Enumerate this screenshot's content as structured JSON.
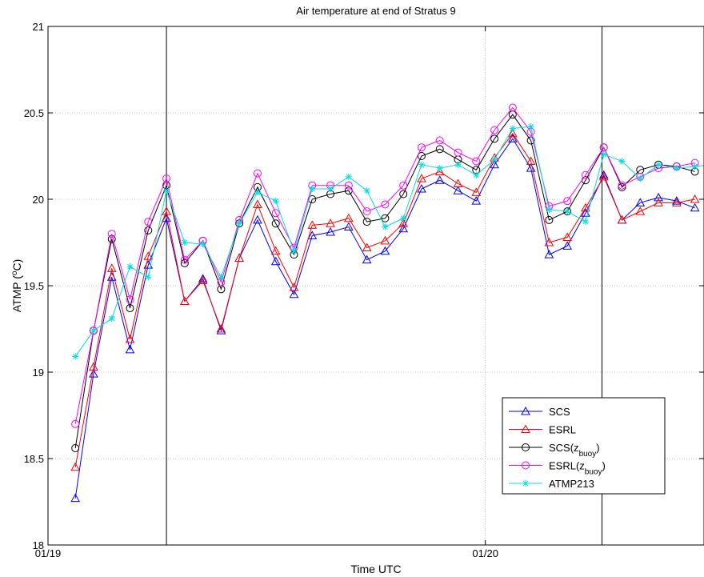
{
  "chart_data": {
    "type": "line",
    "title": "Air temperature at end of Stratus 9",
    "xlabel": "Time UTC",
    "ylabel": "ATMP (°C)",
    "ylabel_parts": {
      "main": "ATMP (",
      "sup": "o",
      "unit": "C)"
    },
    "xlim": [
      0,
      36
    ],
    "ylim": [
      18,
      21
    ],
    "yticks": [
      18,
      18.5,
      19,
      19.5,
      20,
      20.5,
      21
    ],
    "xticks": [
      {
        "x": 0,
        "label": "01/19"
      },
      {
        "x": 24,
        "label": "01/20"
      }
    ],
    "vlines": [
      6.5,
      30.4
    ],
    "grid": true,
    "legend_position": "bottom-right",
    "series": [
      {
        "name": "SCS",
        "label_main": "SCS",
        "label_sub": "",
        "color": "#0000ff",
        "marker": "triangle",
        "x": [
          1.5,
          2.5,
          3.5,
          4.5,
          5.5,
          6.5,
          7.5,
          8.5,
          9.5,
          10.5,
          11.5,
          12.5,
          13.5,
          14.5,
          15.5,
          16.5,
          17.5,
          18.5,
          19.5,
          20.5,
          21.5,
          22.5,
          23.5,
          24.5,
          25.5,
          26.5,
          27.5,
          28.5,
          29.5,
          30.5,
          31.5,
          32.5,
          33.5,
          34.5,
          35.5
        ],
        "values": [
          18.27,
          18.99,
          19.55,
          19.13,
          19.62,
          19.89,
          19.41,
          19.54,
          19.24,
          19.66,
          19.88,
          19.64,
          19.45,
          19.79,
          19.81,
          19.84,
          19.65,
          19.7,
          19.83,
          20.06,
          20.11,
          20.05,
          19.99,
          20.2,
          20.35,
          20.18,
          19.68,
          19.73,
          19.92,
          20.14,
          19.88,
          19.98,
          20.01,
          19.99,
          19.95
        ]
      },
      {
        "name": "ESRL",
        "label_main": "ESRL",
        "label_sub": "",
        "color": "#ff0000",
        "marker": "triangle",
        "x": [
          1.5,
          2.5,
          3.5,
          4.5,
          5.5,
          6.5,
          7.5,
          8.5,
          9.5,
          10.5,
          11.5,
          12.5,
          13.5,
          14.5,
          15.5,
          16.5,
          17.5,
          18.5,
          19.5,
          20.5,
          21.5,
          22.5,
          23.5,
          24.5,
          25.5,
          26.5,
          27.5,
          28.5,
          29.5,
          30.5,
          31.5,
          32.5,
          33.5,
          34.5,
          35.5
        ],
        "values": [
          18.45,
          19.03,
          19.6,
          19.19,
          19.67,
          19.93,
          19.41,
          19.53,
          19.25,
          19.66,
          19.97,
          19.7,
          19.49,
          19.85,
          19.86,
          19.89,
          19.72,
          19.76,
          19.86,
          20.12,
          20.16,
          20.09,
          20.04,
          20.24,
          20.38,
          20.22,
          19.75,
          19.78,
          19.95,
          20.13,
          19.88,
          19.93,
          19.98,
          19.98,
          20.0
        ]
      },
      {
        "name": "SCS(zbuoy)",
        "label_main": "SCS(z",
        "label_sub": "buoy",
        "color": "#000000",
        "marker": "circle",
        "x": [
          1.5,
          2.5,
          3.5,
          4.5,
          5.5,
          6.5,
          7.5,
          8.5,
          9.5,
          10.5,
          11.5,
          12.5,
          13.5,
          14.5,
          15.5,
          16.5,
          17.5,
          18.5,
          19.5,
          20.5,
          21.5,
          22.5,
          23.5,
          24.5,
          25.5,
          26.5,
          27.5,
          28.5,
          29.5,
          30.5,
          31.5,
          32.5,
          33.5,
          34.5,
          35.5
        ],
        "values": [
          18.56,
          19.24,
          19.77,
          19.37,
          19.82,
          20.08,
          19.63,
          19.76,
          19.48,
          19.86,
          20.07,
          19.86,
          19.68,
          20.0,
          20.03,
          20.05,
          19.87,
          19.89,
          20.03,
          20.25,
          20.29,
          20.23,
          20.17,
          20.35,
          20.49,
          20.34,
          19.88,
          19.93,
          20.11,
          20.3,
          20.07,
          20.17,
          20.2,
          20.19,
          20.16
        ]
      },
      {
        "name": "ESRL(zbuoy)",
        "label_main": "ESRL(z",
        "label_sub": "buoy",
        "color": "#ff00ff",
        "marker": "circle",
        "x": [
          1.5,
          2.5,
          3.5,
          4.5,
          5.5,
          6.5,
          7.5,
          8.5,
          9.5,
          10.5,
          11.5,
          12.5,
          13.5,
          14.5,
          15.5,
          16.5,
          17.5,
          18.5,
          19.5,
          20.5,
          21.5,
          22.5,
          23.5,
          24.5,
          25.5,
          26.5,
          27.5,
          28.5,
          29.5,
          30.5,
          31.5,
          32.5,
          33.5,
          34.5,
          35.5
        ],
        "values": [
          18.7,
          19.24,
          19.8,
          19.42,
          19.87,
          20.12,
          19.65,
          19.76,
          19.52,
          19.88,
          20.15,
          19.92,
          19.72,
          20.08,
          20.08,
          20.08,
          19.93,
          19.97,
          20.08,
          20.3,
          20.34,
          20.27,
          20.22,
          20.4,
          20.53,
          20.39,
          19.96,
          19.99,
          20.14,
          20.3,
          20.08,
          20.13,
          20.18,
          20.19,
          20.21
        ]
      },
      {
        "name": "ATMP213",
        "label_main": "ATMP213",
        "label_sub": "",
        "color": "#00e0e0",
        "marker": "star",
        "x": [
          1.5,
          2.5,
          3.5,
          4.5,
          5.5,
          6.5,
          7.5,
          8.5,
          9.5,
          10.5,
          11.5,
          12.5,
          13.5,
          14.5,
          15.5,
          16.5,
          17.5,
          18.5,
          19.5,
          20.5,
          21.5,
          22.5,
          23.5,
          24.5,
          25.5,
          26.5,
          27.5,
          28.5,
          29.5,
          30.5,
          31.5,
          32.5,
          33.5,
          34.5,
          35.5,
          36.5
        ],
        "values": [
          19.09,
          19.24,
          19.31,
          19.61,
          19.55,
          20.05,
          19.75,
          19.74,
          19.55,
          19.86,
          20.04,
          19.99,
          19.7,
          20.06,
          20.06,
          20.13,
          20.05,
          19.84,
          19.89,
          20.2,
          20.18,
          20.2,
          20.14,
          20.23,
          20.41,
          20.42,
          19.94,
          19.93,
          19.87,
          20.26,
          20.22,
          20.12,
          20.2,
          20.18,
          20.19,
          20.2
        ]
      }
    ]
  }
}
